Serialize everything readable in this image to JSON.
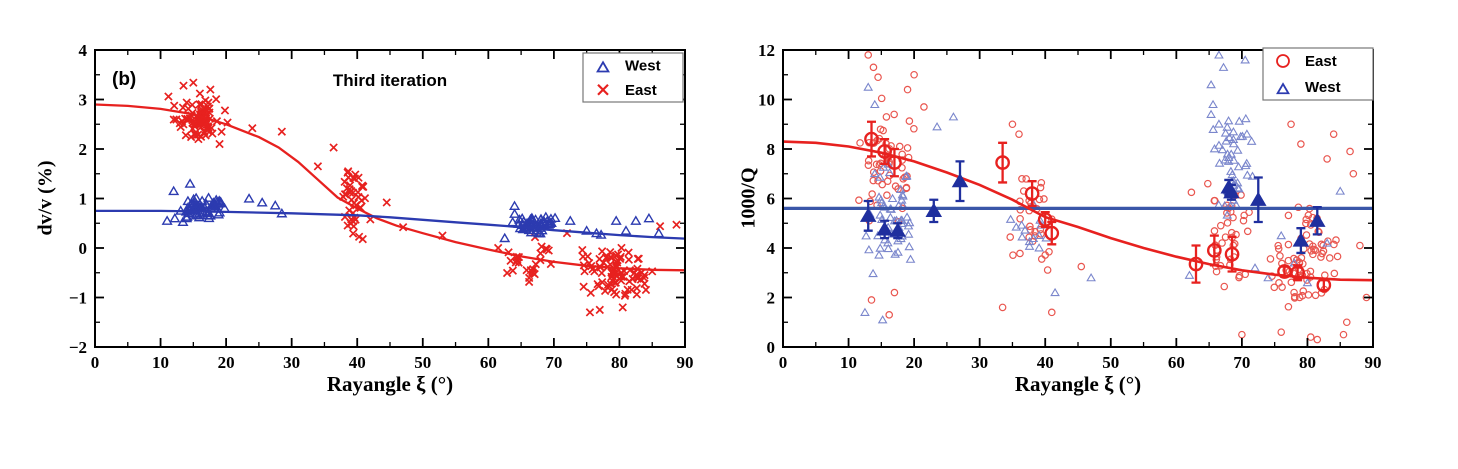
{
  "page": {
    "background": "#ffffff"
  },
  "colors": {
    "black": "#000000",
    "red": "#e7211f",
    "red_light": "#e9564f",
    "blue": "#2c3bb0",
    "blue_light": "#7a86cc",
    "blue_dark": "#1f2f9e",
    "blue_line": "#3a56a8",
    "legend_border": "#777777"
  },
  "chart_data": [
    {
      "type": "scatter",
      "panel_label": "(b)",
      "title": "Third iteration",
      "xlabel": "Rayangle ξ (°)",
      "ylabel": "dv/v (%)",
      "xlim": [
        0,
        90
      ],
      "ylim": [
        -2,
        4
      ],
      "xticks": [
        0,
        10,
        20,
        30,
        40,
        50,
        60,
        70,
        80,
        90
      ],
      "yticks": [
        -2,
        -1,
        0,
        1,
        2,
        3,
        4
      ],
      "x_minor_step": 5,
      "y_minor_step": 0.5,
      "grid": false,
      "legend": {
        "position": "top-right",
        "entries": [
          {
            "label": "West",
            "marker": "triangle-open",
            "color_key": "blue"
          },
          {
            "label": "East",
            "marker": "x",
            "color_key": "red"
          }
        ]
      },
      "series": [
        {
          "name": "East",
          "marker": "x",
          "color_key": "red",
          "size": 3.6,
          "stroke": 1.7,
          "clusters": [
            {
              "cx": 16,
              "cy": 2.6,
              "sx": 4.6,
              "sy": 0.45,
              "n": 78,
              "seed": 11
            },
            {
              "cx": 40,
              "cy": 1.0,
              "sx": 2.3,
              "sy": 1.0,
              "n": 44,
              "seed": 12
            },
            {
              "cx": 66.5,
              "cy": -0.2,
              "sx": 3.8,
              "sy": 0.55,
              "n": 26,
              "seed": 13
            },
            {
              "cx": 79.5,
              "cy": -0.5,
              "sx": 5.6,
              "sy": 0.6,
              "n": 88,
              "seed": 14
            }
          ],
          "points": [
            [
              13.5,
              3.28
            ],
            [
              15,
              3.34
            ],
            [
              16,
              3.12
            ],
            [
              11.2,
              3.06
            ],
            [
              17.6,
              3.2
            ],
            [
              19,
              2.1
            ],
            [
              24,
              2.42
            ],
            [
              28.5,
              2.35
            ],
            [
              34,
              1.65
            ],
            [
              36.4,
              2.03
            ],
            [
              44.5,
              0.92
            ],
            [
              47,
              0.42
            ],
            [
              53,
              0.25
            ],
            [
              61.5,
              0.0
            ],
            [
              72,
              0.3
            ],
            [
              86.2,
              0.44
            ],
            [
              88.7,
              0.47
            ],
            [
              75.5,
              -1.3
            ],
            [
              77,
              -1.25
            ],
            [
              80.5,
              -1.2
            ]
          ]
        },
        {
          "name": "West",
          "marker": "triangle-open",
          "color_key": "blue",
          "size": 4.0,
          "stroke": 1.4,
          "clusters": [
            {
              "cx": 16.5,
              "cy": 0.8,
              "sx": 4.6,
              "sy": 0.3,
              "n": 62,
              "seed": 21
            },
            {
              "cx": 67.5,
              "cy": 0.5,
              "sx": 4.0,
              "sy": 0.24,
              "n": 52,
              "seed": 22
            }
          ],
          "points": [
            [
              23.5,
              1.0
            ],
            [
              25.5,
              0.92
            ],
            [
              27.5,
              0.86
            ],
            [
              28.5,
              0.7
            ],
            [
              11,
              0.55
            ],
            [
              12,
              1.15
            ],
            [
              14.5,
              1.3
            ],
            [
              72.5,
              0.55
            ],
            [
              75,
              0.35
            ],
            [
              76.5,
              0.3
            ],
            [
              77.2,
              0.27
            ],
            [
              79.5,
              0.55
            ],
            [
              81,
              0.35
            ],
            [
              82.5,
              0.55
            ],
            [
              84.5,
              0.6
            ],
            [
              86,
              0.3
            ],
            [
              62.5,
              0.2
            ],
            [
              64,
              0.85
            ]
          ]
        }
      ],
      "curves": [
        {
          "name": "East fit",
          "color_key": "red",
          "width": 2.3,
          "samples": [
            [
              0,
              2.9
            ],
            [
              5,
              2.87
            ],
            [
              10,
              2.81
            ],
            [
              15,
              2.7
            ],
            [
              20,
              2.5
            ],
            [
              25,
              2.24
            ],
            [
              28,
              2.03
            ],
            [
              31,
              1.74
            ],
            [
              34,
              1.38
            ],
            [
              37,
              1.02
            ],
            [
              40,
              0.8
            ],
            [
              43,
              0.6
            ],
            [
              46,
              0.45
            ],
            [
              50,
              0.3
            ],
            [
              55,
              0.12
            ],
            [
              60,
              -0.03
            ],
            [
              65,
              -0.17
            ],
            [
              70,
              -0.28
            ],
            [
              75,
              -0.36
            ],
            [
              80,
              -0.41
            ],
            [
              85,
              -0.44
            ],
            [
              90,
              -0.45
            ]
          ]
        },
        {
          "name": "West fit",
          "color_key": "blue",
          "width": 2.3,
          "samples": [
            [
              0,
              0.75
            ],
            [
              10,
              0.75
            ],
            [
              20,
              0.73
            ],
            [
              30,
              0.7
            ],
            [
              40,
              0.66
            ],
            [
              45,
              0.62
            ],
            [
              50,
              0.57
            ],
            [
              55,
              0.52
            ],
            [
              60,
              0.47
            ],
            [
              65,
              0.42
            ],
            [
              70,
              0.36
            ],
            [
              75,
              0.31
            ],
            [
              80,
              0.26
            ],
            [
              85,
              0.22
            ],
            [
              90,
              0.19
            ]
          ]
        }
      ],
      "means": []
    },
    {
      "type": "scatter",
      "panel_label": "",
      "title": "",
      "xlabel": "Rayangle ξ (°)",
      "ylabel": "1000/Q",
      "xlim": [
        0,
        90
      ],
      "ylim": [
        0,
        12
      ],
      "xticks": [
        0,
        10,
        20,
        30,
        40,
        50,
        60,
        70,
        80,
        90
      ],
      "yticks": [
        0,
        2,
        4,
        6,
        8,
        10,
        12
      ],
      "x_minor_step": 5,
      "y_minor_step": 1,
      "grid": false,
      "legend": {
        "position": "top-right",
        "entries": [
          {
            "label": "East",
            "marker": "circle-open",
            "color_key": "red"
          },
          {
            "label": "West",
            "marker": "triangle-open",
            "color_key": "blue"
          }
        ]
      },
      "series": [
        {
          "name": "East",
          "marker": "circle-open",
          "color_key": "red_light",
          "size": 3.2,
          "stroke": 1.2,
          "clusters": [
            {
              "cx": 16,
              "cy": 7.4,
              "sx": 4.6,
              "sy": 3.0,
              "n": 55,
              "seed": 31
            },
            {
              "cx": 38,
              "cy": 5.3,
              "sx": 4.0,
              "sy": 2.4,
              "n": 30,
              "seed": 32
            },
            {
              "cx": 67.5,
              "cy": 4.4,
              "sx": 4.5,
              "sy": 2.1,
              "n": 38,
              "seed": 33
            },
            {
              "cx": 80,
              "cy": 3.5,
              "sx": 6.0,
              "sy": 2.3,
              "n": 72,
              "seed": 34
            }
          ],
          "points": [
            [
              13,
              11.8
            ],
            [
              13.8,
              11.3
            ],
            [
              14.5,
              10.9
            ],
            [
              20,
              11.0
            ],
            [
              19,
              10.4
            ],
            [
              21.5,
              9.7
            ],
            [
              13.5,
              1.9
            ],
            [
              16.2,
              1.3
            ],
            [
              17,
              2.2
            ],
            [
              35,
              9.0
            ],
            [
              36,
              8.6
            ],
            [
              33.5,
              1.6
            ],
            [
              41,
              1.4
            ],
            [
              45.5,
              3.25
            ],
            [
              62.3,
              6.25
            ],
            [
              64.8,
              6.6
            ],
            [
              70,
              0.5
            ],
            [
              76,
              0.6
            ],
            [
              80.5,
              0.4
            ],
            [
              81.5,
              0.3
            ],
            [
              85.5,
              0.5
            ],
            [
              86,
              1.0
            ],
            [
              77.5,
              9.0
            ],
            [
              79,
              8.2
            ],
            [
              84,
              8.6
            ],
            [
              86.5,
              7.9
            ],
            [
              88,
              4.1
            ],
            [
              89,
              2.0
            ],
            [
              87,
              7.0
            ],
            [
              83,
              7.6
            ]
          ]
        },
        {
          "name": "West",
          "marker": "triangle-open",
          "color_key": "blue_light",
          "size": 3.6,
          "stroke": 1.1,
          "clusters": [
            {
              "cx": 16.5,
              "cy": 5.3,
              "sx": 5.0,
              "sy": 2.4,
              "n": 55,
              "seed": 41
            },
            {
              "cx": 38,
              "cy": 4.9,
              "sx": 3.6,
              "sy": 1.7,
              "n": 14,
              "seed": 42
            },
            {
              "cx": 68.5,
              "cy": 7.3,
              "sx": 3.8,
              "sy": 2.2,
              "n": 48,
              "seed": 43
            }
          ],
          "points": [
            [
              13,
              10.5
            ],
            [
              14,
              9.8
            ],
            [
              12.5,
              1.4
            ],
            [
              15.2,
              1.1
            ],
            [
              23.5,
              8.9
            ],
            [
              26,
              9.3
            ],
            [
              65.3,
              10.6
            ],
            [
              65.6,
              9.8
            ],
            [
              65.3,
              9.4
            ],
            [
              66.5,
              11.8
            ],
            [
              67.2,
              11.3
            ],
            [
              70.5,
              11.6
            ],
            [
              72,
              3.2
            ],
            [
              74,
              2.8
            ],
            [
              76,
              4.5
            ],
            [
              78,
              3.4
            ],
            [
              80,
              2.6
            ],
            [
              83,
              4.2
            ],
            [
              85,
              6.3
            ],
            [
              47,
              2.8
            ],
            [
              41.5,
              2.2
            ],
            [
              62,
              2.9
            ]
          ]
        }
      ],
      "curves": [
        {
          "name": "West fit",
          "color_key": "blue_line",
          "width": 3.2,
          "samples": [
            [
              0,
              5.6
            ],
            [
              90,
              5.6
            ]
          ]
        },
        {
          "name": "East fit",
          "color_key": "red",
          "width": 2.6,
          "samples": [
            [
              0,
              8.3
            ],
            [
              5,
              8.25
            ],
            [
              10,
              8.1
            ],
            [
              15,
              7.85
            ],
            [
              20,
              7.5
            ],
            [
              25,
              7.05
            ],
            [
              30,
              6.55
            ],
            [
              35,
              5.95
            ],
            [
              40,
              5.25
            ],
            [
              45,
              4.85
            ],
            [
              50,
              4.4
            ],
            [
              55,
              4.0
            ],
            [
              60,
              3.65
            ],
            [
              65,
              3.35
            ],
            [
              70,
              3.1
            ],
            [
              75,
              2.92
            ],
            [
              80,
              2.8
            ],
            [
              85,
              2.72
            ],
            [
              90,
              2.7
            ]
          ]
        }
      ],
      "means": [
        {
          "name": "East mean",
          "marker": "circle-open",
          "color_key": "red",
          "size": 6.2,
          "stroke": 2.3,
          "cap": 4.5,
          "values": [
            [
              13.5,
              8.4,
              0.7
            ],
            [
              15.5,
              7.9,
              0.5
            ],
            [
              17,
              7.45,
              0.55
            ],
            [
              33.5,
              7.45,
              0.8
            ],
            [
              38,
              6.2,
              0.5
            ],
            [
              40,
              5.15,
              0.3
            ],
            [
              41,
              4.6,
              0.45
            ],
            [
              63,
              3.35,
              0.75
            ],
            [
              65.8,
              3.9,
              0.6
            ],
            [
              68.5,
              3.75,
              0.7
            ],
            [
              76.5,
              3.05,
              0.2
            ],
            [
              78.5,
              3.0,
              0.3
            ],
            [
              82.5,
              2.5,
              0.2
            ]
          ]
        },
        {
          "name": "West mean",
          "marker": "triangle-filled",
          "color_key": "blue_dark",
          "size": 5.8,
          "stroke": 2.3,
          "cap": 4.5,
          "values": [
            [
              13,
              5.3,
              0.6
            ],
            [
              15.5,
              4.75,
              0.35
            ],
            [
              17.5,
              4.7,
              0.3
            ],
            [
              23,
              5.5,
              0.45
            ],
            [
              27,
              6.7,
              0.8
            ],
            [
              68,
              6.45,
              0.3
            ],
            [
              68.4,
              6.25,
              0.3
            ],
            [
              72.5,
              5.95,
              0.9
            ],
            [
              79,
              4.3,
              0.5
            ],
            [
              81.5,
              5.1,
              0.55
            ]
          ]
        }
      ]
    }
  ]
}
